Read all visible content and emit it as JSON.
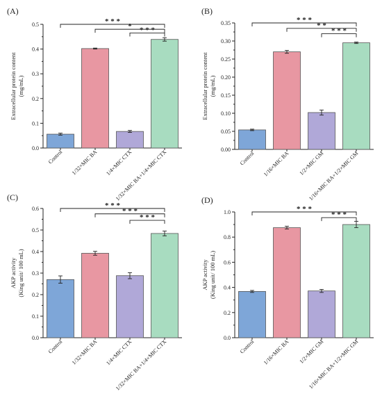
{
  "colors": {
    "blue": "#7ea6d8",
    "pink": "#e897a2",
    "purple": "#b0a8d8",
    "green": "#a8dcc0"
  },
  "chart_data": [
    {
      "type": "bar",
      "panel": "(A)",
      "ylabel": [
        "Extracellular protein content",
        "(mg/mL)"
      ],
      "ylim": [
        0,
        0.5
      ],
      "yticks": [
        0.0,
        0.1,
        0.2,
        0.3,
        0.4,
        0.5
      ],
      "tick_labels": [
        "0.0",
        "0.1",
        "0.2",
        "0.3",
        "0.4",
        "0.5"
      ],
      "categories": [
        "Control",
        "1/32×MIC BA",
        "1/4×MIC CTX",
        "1/32×MIC BA+1/4×MIC CTX"
      ],
      "values": [
        0.056,
        0.402,
        0.067,
        0.439
      ],
      "errors": [
        0.004,
        0.002,
        0.004,
        0.007
      ],
      "significance": [
        {
          "from": 0,
          "to": 3,
          "label": "* * *",
          "level": 0.5
        },
        {
          "from": 1,
          "to": 3,
          "label": "*",
          "level": 0.48
        },
        {
          "from": 2,
          "to": 3,
          "label": "* * *",
          "level": 0.465
        }
      ]
    },
    {
      "type": "bar",
      "panel": "(B)",
      "ylabel": [
        "Extracellular protein content",
        "(mg/mL)"
      ],
      "ylim": [
        0,
        0.35
      ],
      "yticks": [
        0.0,
        0.05,
        0.1,
        0.15,
        0.2,
        0.25,
        0.3,
        0.35
      ],
      "tick_labels": [
        "0.00",
        "0.05",
        "0.10",
        "0.15",
        "0.20",
        "0.25",
        "0.30",
        "0.35"
      ],
      "categories": [
        "Control",
        "1/16×MIC BA",
        "1/2×MIC GM",
        "1/16×MIC BA+1/2×MIC GM"
      ],
      "values": [
        0.054,
        0.27,
        0.102,
        0.295
      ],
      "errors": [
        0.002,
        0.004,
        0.007,
        0.002
      ],
      "significance": [
        {
          "from": 0,
          "to": 3,
          "label": "* * *",
          "level": 0.35
        },
        {
          "from": 1,
          "to": 3,
          "label": "* *",
          "level": 0.335
        },
        {
          "from": 2,
          "to": 3,
          "label": "* * *",
          "level": 0.32
        }
      ]
    },
    {
      "type": "bar",
      "panel": "(C)",
      "ylabel": [
        "AKP activity",
        "(King unit/ 100 mL)"
      ],
      "ylim": [
        0,
        0.6
      ],
      "yticks": [
        0.0,
        0.1,
        0.2,
        0.3,
        0.4,
        0.5,
        0.6
      ],
      "tick_labels": [
        "0.0",
        "0.1",
        "0.2",
        "0.3",
        "0.4",
        "0.5",
        "0.6"
      ],
      "categories": [
        "Control",
        "1/32×MIC BA",
        "1/4×MIC CTX",
        "1/32×MIC BA+1/4×MIC CTX"
      ],
      "values": [
        0.27,
        0.392,
        0.288,
        0.484
      ],
      "errors": [
        0.017,
        0.009,
        0.014,
        0.011
      ],
      "significance": [
        {
          "from": 0,
          "to": 3,
          "label": "* * *",
          "level": 0.6
        },
        {
          "from": 1,
          "to": 3,
          "label": "* * *",
          "level": 0.575
        },
        {
          "from": 2,
          "to": 3,
          "label": "* * *",
          "level": 0.545
        }
      ]
    },
    {
      "type": "bar",
      "panel": "(D)",
      "ylabel": [
        "AKP activity",
        "(King unit/ 100 mL)"
      ],
      "ylim": [
        0,
        1.0
      ],
      "yticks": [
        0.0,
        0.2,
        0.4,
        0.6,
        0.8,
        1.0
      ],
      "tick_labels": [
        "0.0",
        "0.2",
        "0.4",
        "0.6",
        "0.8",
        "1.0"
      ],
      "categories": [
        "Control",
        "1/16×MIC BA",
        "1/2×MIC GM",
        "1/16×MIC BA+1/2×MIC GM"
      ],
      "values": [
        0.368,
        0.875,
        0.372,
        0.9
      ],
      "errors": [
        0.008,
        0.011,
        0.012,
        0.025
      ],
      "significance": [
        {
          "from": 0,
          "to": 3,
          "label": "* * *",
          "level": 1.0
        },
        {
          "from": 2,
          "to": 3,
          "label": "* * *",
          "level": 0.955
        }
      ]
    }
  ]
}
